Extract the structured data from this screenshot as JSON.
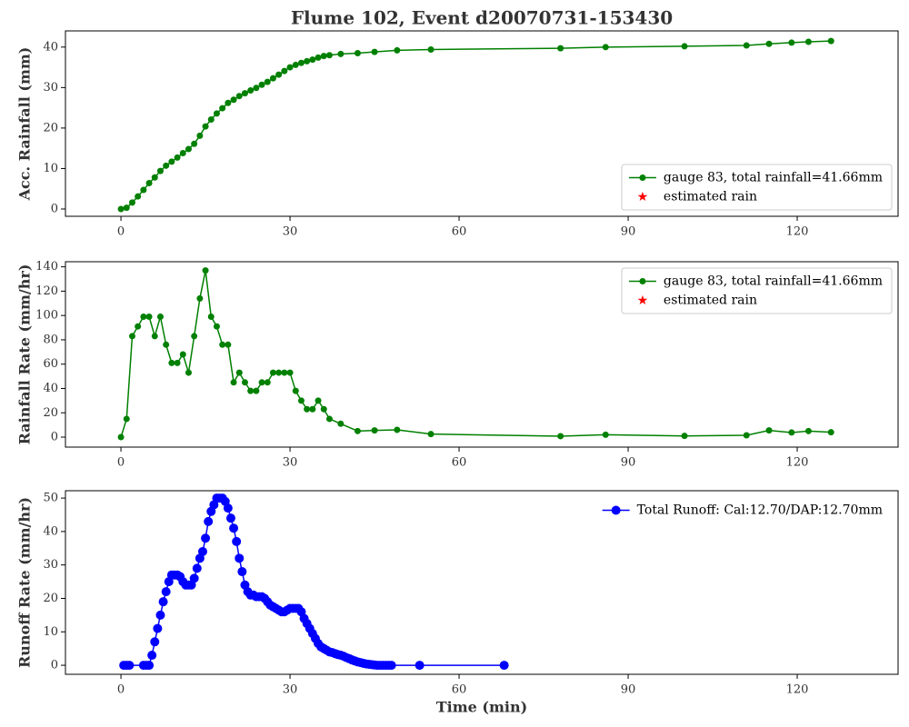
{
  "chart_data": [
    {
      "type": "line",
      "title": "Flume 102, Event d20070731-153430",
      "ylabel": "Acc. Rainfall (mm)",
      "x": [
        0,
        1,
        2,
        3,
        4,
        5,
        6,
        7,
        8,
        9,
        10,
        11,
        12,
        13,
        14,
        15,
        16,
        17,
        18,
        19,
        20,
        21,
        22,
        23,
        24,
        25,
        26,
        27,
        28,
        29,
        30,
        31,
        32,
        33,
        34,
        35,
        36,
        37,
        39,
        42,
        45,
        49,
        55,
        78,
        86,
        100,
        111,
        115,
        119,
        122,
        126
      ],
      "series": [
        {
          "name": "gauge 83, total rainfall=41.66mm",
          "color": "#008000",
          "marker": "o",
          "linestyle": "-",
          "values": [
            0,
            0.3,
            1.6,
            3.1,
            4.7,
            6.4,
            7.8,
            9.4,
            10.7,
            11.7,
            12.7,
            13.8,
            14.8,
            16.1,
            18.1,
            20.4,
            22.1,
            23.6,
            24.9,
            26.2,
            27,
            27.9,
            28.6,
            29.3,
            29.9,
            30.7,
            31.4,
            32.3,
            33.2,
            34.1,
            35,
            35.6,
            36.1,
            36.5,
            36.9,
            37.4,
            37.8,
            38,
            38.3,
            38.5,
            38.8,
            39.2,
            39.4,
            39.7,
            40,
            40.2,
            40.4,
            40.8,
            41.1,
            41.3,
            41.5
          ]
        },
        {
          "name": "estimated rain",
          "color": "#ff0000",
          "marker": "*",
          "linestyle": "none",
          "values": [
            null,
            null,
            null,
            null,
            null,
            null,
            null,
            null,
            null,
            null,
            null,
            null,
            null,
            null,
            null,
            null,
            null,
            null,
            null,
            null,
            null,
            null,
            null,
            null,
            null,
            null,
            null,
            null,
            null,
            null,
            null,
            null,
            null,
            null,
            null,
            null,
            null,
            null,
            null,
            null,
            null,
            null,
            null,
            null,
            null,
            null,
            null,
            null,
            null,
            null,
            null
          ]
        }
      ],
      "xlim": [
        -9.85,
        137.9
      ],
      "ylim": [
        -1.8,
        44
      ],
      "xticks": [
        0,
        30,
        60,
        90,
        120
      ],
      "yticks": [
        0,
        10,
        20,
        30,
        40
      ],
      "legend": "lower right",
      "legend_frame": true
    },
    {
      "type": "line",
      "ylabel": "Rainfall Rate (mm/hr)",
      "x": [
        0,
        1,
        2,
        3,
        4,
        5,
        6,
        7,
        8,
        9,
        10,
        11,
        12,
        13,
        14,
        15,
        16,
        17,
        18,
        19,
        20,
        21,
        22,
        23,
        24,
        25,
        26,
        27,
        28,
        29,
        30,
        31,
        32,
        33,
        34,
        35,
        36,
        37,
        39,
        42,
        45,
        49,
        55,
        78,
        86,
        100,
        111,
        115,
        119,
        122,
        126
      ],
      "series": [
        {
          "name": "gauge 83, total rainfall=41.66mm",
          "color": "#008000",
          "marker": "o",
          "linestyle": "-",
          "values": [
            0,
            15,
            83,
            91,
            99,
            99,
            83,
            99,
            76,
            61,
            61,
            68,
            53,
            83,
            114,
            137,
            99,
            91,
            76,
            76,
            45,
            53,
            45,
            38,
            38,
            45,
            45,
            53,
            53,
            53,
            53,
            38,
            30,
            23,
            23,
            30,
            23,
            15,
            11,
            5,
            5.5,
            6,
            2.5,
            0.8,
            2,
            1,
            1.5,
            5.5,
            3.8,
            5,
            4
          ]
        },
        {
          "name": "estimated rain",
          "color": "#ff0000",
          "marker": "*",
          "linestyle": "none",
          "values": [
            null,
            null,
            null,
            null,
            null,
            null,
            null,
            null,
            null,
            null,
            null,
            null,
            null,
            null,
            null,
            null,
            null,
            null,
            null,
            null,
            null,
            null,
            null,
            null,
            null,
            null,
            null,
            null,
            null,
            null,
            null,
            null,
            null,
            null,
            null,
            null,
            null,
            null,
            null,
            null,
            null,
            null,
            null,
            null,
            null,
            null,
            null,
            null,
            null,
            null,
            null
          ]
        }
      ],
      "xlim": [
        -9.85,
        137.9
      ],
      "ylim": [
        -8.2,
        144.2
      ],
      "xticks": [
        0,
        30,
        60,
        90,
        120
      ],
      "yticks": [
        0,
        20,
        40,
        60,
        80,
        100,
        120,
        140
      ],
      "legend": "upper right",
      "legend_frame": true
    },
    {
      "type": "line",
      "ylabel": "Runoff Rate (mm/hr)",
      "xlabel": "Time (min)",
      "x": [
        0.5,
        1,
        1.5,
        4,
        4.5,
        5,
        5.5,
        6,
        6.5,
        7,
        7.5,
        8,
        8.5,
        9,
        9.5,
        10,
        10.5,
        11,
        11.5,
        12,
        12.5,
        13,
        13.5,
        14,
        14.5,
        15,
        15.5,
        16,
        16.5,
        17,
        17.5,
        18,
        18.5,
        19,
        19.5,
        20,
        20.5,
        21,
        21.5,
        22,
        22.5,
        23,
        23.5,
        24,
        24.5,
        25,
        25.5,
        26,
        26.5,
        27,
        27.5,
        28,
        28.5,
        29,
        29.5,
        30,
        30.5,
        31,
        31.5,
        32,
        32.5,
        33,
        33.5,
        34,
        34.5,
        35,
        35.5,
        36,
        36.5,
        37,
        37.5,
        38,
        38.5,
        39,
        39.5,
        40,
        40.5,
        41,
        41.5,
        42,
        42.5,
        43,
        43.5,
        44,
        44.5,
        45,
        45.5,
        46,
        46.5,
        47,
        47.5,
        48,
        53,
        68
      ],
      "series": [
        {
          "name": "Total Runoff: Cal:12.70/DAP:12.70mm",
          "color": "#0000ff",
          "marker": "o",
          "linestyle": "-",
          "values": [
            0,
            0,
            0,
            0,
            0,
            0,
            3,
            7,
            11,
            15,
            19,
            22,
            25,
            27,
            27,
            27,
            26.5,
            25,
            24,
            24,
            24,
            26,
            29,
            32,
            34,
            38,
            43,
            46,
            48,
            50,
            50,
            50,
            49,
            47,
            44,
            41,
            37,
            32,
            28,
            24,
            22,
            21,
            21,
            20.5,
            20.5,
            20.5,
            20,
            19,
            18,
            17.5,
            17,
            16.5,
            16,
            16,
            16.5,
            17,
            17,
            17,
            17,
            16,
            14,
            12.5,
            11,
            9.5,
            8,
            6.5,
            5.5,
            5,
            4.5,
            4,
            3.8,
            3.5,
            3.2,
            3,
            2.7,
            2.3,
            2,
            1.6,
            1.3,
            1,
            0.8,
            0.6,
            0.4,
            0.3,
            0.2,
            0.1,
            0,
            0,
            0,
            0,
            0,
            0,
            0,
            0
          ]
        }
      ],
      "xlim": [
        -9.85,
        137.9
      ],
      "ylim": [
        -2.7,
        52.2
      ],
      "xticks": [
        0,
        30,
        60,
        90,
        120
      ],
      "yticks": [
        0,
        10,
        20,
        30,
        40,
        50
      ],
      "legend": "upper right",
      "legend_frame": false
    }
  ]
}
